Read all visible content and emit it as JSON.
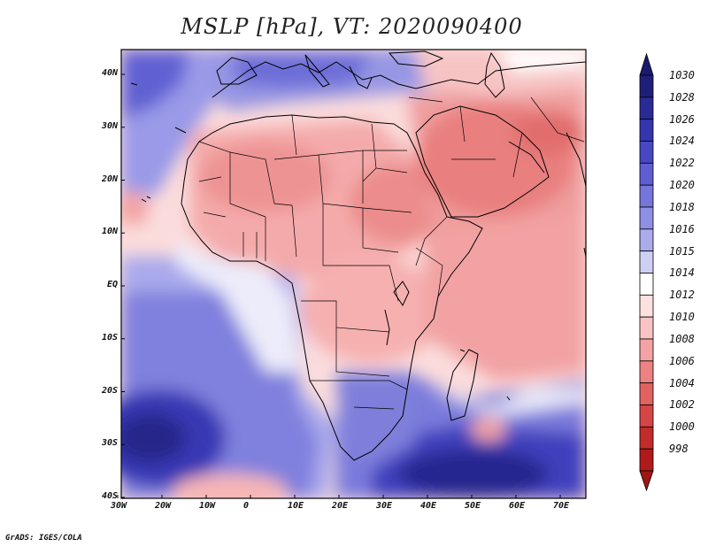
{
  "title": "MSLP [hPa], VT: 2020090400",
  "credit": "GrADS: IGES/COLA",
  "lon_labels": [
    "30W",
    "20W",
    "10W",
    "0",
    "10E",
    "20E",
    "30E",
    "40E",
    "50E",
    "60E",
    "70E"
  ],
  "lat_labels": [
    "40N",
    "30N",
    "20N",
    "10N",
    "EQ",
    "10S",
    "20S",
    "30S",
    "40S"
  ],
  "colorbar": {
    "labels": [
      "1030",
      "1028",
      "1026",
      "1024",
      "1022",
      "1020",
      "1018",
      "1016",
      "1015",
      "1014",
      "1012",
      "1010",
      "1008",
      "1006",
      "1004",
      "1002",
      "1000",
      "998"
    ],
    "colors": [
      "#1f1f7a",
      "#2a2a96",
      "#3535b0",
      "#4848c4",
      "#5e5ed2",
      "#7575dc",
      "#8f8fe4",
      "#ababec",
      "#cfcff5",
      "#ffffff",
      "#fde0e0",
      "#f9c3c3",
      "#f3a3a3",
      "#ec8282",
      "#e26262",
      "#d64545",
      "#c42c2c",
      "#b01a1a"
    ],
    "top_color": "#1a1a70",
    "bottom_color": "#a01515"
  }
}
